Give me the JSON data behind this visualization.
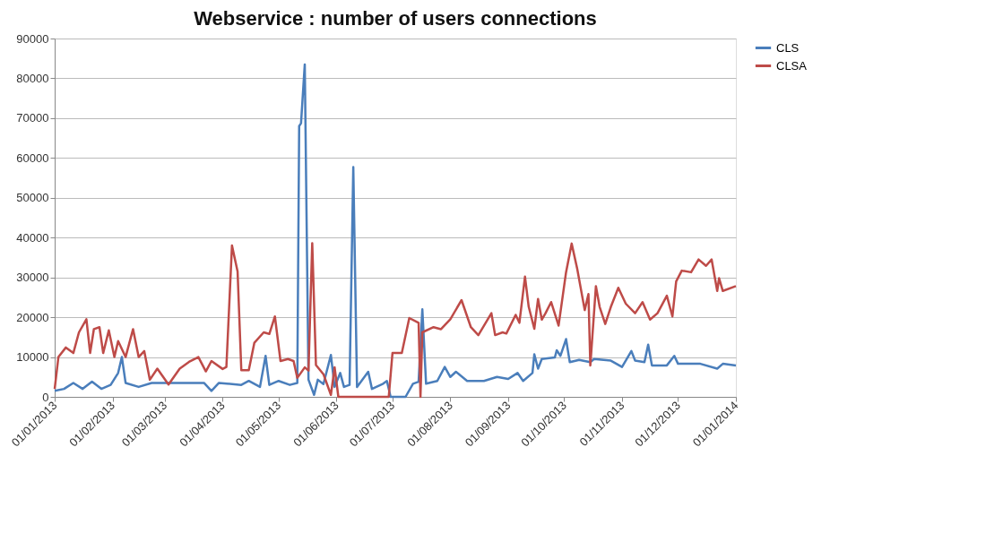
{
  "chart_data": {
    "type": "line",
    "title": "Webservice : number of users connections",
    "xlim": [
      "2013-01-01",
      "2014-01-01"
    ],
    "xticks": [
      {
        "value": "2013-01-01",
        "label": "01/01/2013"
      },
      {
        "value": "2013-02-01",
        "label": "01/02/2013"
      },
      {
        "value": "2013-03-01",
        "label": "01/03/2013"
      },
      {
        "value": "2013-04-01",
        "label": "01/04/2013"
      },
      {
        "value": "2013-05-01",
        "label": "01/05/2013"
      },
      {
        "value": "2013-06-01",
        "label": "01/06/2013"
      },
      {
        "value": "2013-07-01",
        "label": "01/07/2013"
      },
      {
        "value": "2013-08-01",
        "label": "01/08/2013"
      },
      {
        "value": "2013-09-01",
        "label": "01/09/2013"
      },
      {
        "value": "2013-10-01",
        "label": "01/10/2013"
      },
      {
        "value": "2013-11-01",
        "label": "01/11/2013"
      },
      {
        "value": "2013-12-01",
        "label": "01/12/2013"
      },
      {
        "value": "2014-01-01",
        "label": "01/01/2014"
      }
    ],
    "ylim": [
      0,
      90000
    ],
    "yticks": [
      0,
      10000,
      20000,
      30000,
      40000,
      50000,
      60000,
      70000,
      80000,
      90000
    ],
    "grid": "y",
    "legend": "right",
    "marker": "none",
    "line_style": "solid",
    "series": [
      {
        "name": "CLS",
        "color": "#4a7ebb",
        "x": [
          "2013-01-01",
          "2013-01-06",
          "2013-01-11",
          "2013-01-16",
          "2013-01-21",
          "2013-01-26",
          "2013-01-31",
          "2013-02-04",
          "2013-02-06",
          "2013-02-08",
          "2013-02-15",
          "2013-02-22",
          "2013-03-02",
          "2013-03-22",
          "2013-03-26",
          "2013-03-30",
          "2013-04-11",
          "2013-04-15",
          "2013-04-21",
          "2013-04-24",
          "2013-04-26",
          "2013-05-01",
          "2013-05-07",
          "2013-05-11",
          "2013-05-12",
          "2013-05-13",
          "2013-05-15",
          "2013-05-17",
          "2013-05-20",
          "2013-05-22",
          "2013-05-25",
          "2013-05-29",
          "2013-05-31",
          "2013-06-03",
          "2013-06-05",
          "2013-06-08",
          "2013-06-10",
          "2013-06-12",
          "2013-06-18",
          "2013-06-20",
          "2013-06-26",
          "2013-06-28",
          "2013-06-30",
          "2013-07-08",
          "2013-07-12",
          "2013-07-15",
          "2013-07-17",
          "2013-07-19",
          "2013-07-25",
          "2013-07-29",
          "2013-08-01",
          "2013-08-04",
          "2013-08-10",
          "2013-08-19",
          "2013-08-26",
          "2013-09-01",
          "2013-09-06",
          "2013-09-09",
          "2013-09-14",
          "2013-09-15",
          "2013-09-17",
          "2013-09-19",
          "2013-09-26",
          "2013-09-27",
          "2013-09-29",
          "2013-10-02",
          "2013-10-04",
          "2013-10-09",
          "2013-10-15",
          "2013-10-17",
          "2013-10-26",
          "2013-11-01",
          "2013-11-06",
          "2013-11-08",
          "2013-11-13",
          "2013-11-15",
          "2013-11-17",
          "2013-11-25",
          "2013-11-29",
          "2013-12-01",
          "2013-12-13",
          "2013-12-22",
          "2013-12-25",
          "2014-01-01"
        ],
        "values": [
          1500,
          2000,
          3500,
          2000,
          3800,
          2000,
          3000,
          6000,
          10000,
          3500,
          2500,
          3500,
          3500,
          3500,
          1500,
          3500,
          3000,
          4000,
          2500,
          10300,
          3000,
          4000,
          3000,
          3500,
          68000,
          68700,
          83500,
          4300,
          500,
          4300,
          3200,
          10500,
          2500,
          6000,
          2500,
          3000,
          57700,
          2500,
          6300,
          2000,
          3300,
          4000,
          0,
          0,
          3300,
          3800,
          22000,
          3300,
          4000,
          7500,
          5000,
          6300,
          4000,
          4000,
          5000,
          4500,
          6000,
          4000,
          6000,
          10700,
          7100,
          9500,
          9900,
          11700,
          10300,
          14500,
          8700,
          9300,
          8700,
          9500,
          9100,
          7500,
          11500,
          9100,
          8700,
          13100,
          7900,
          7900,
          10300,
          8300,
          8300,
          7100,
          8300,
          7900
        ]
      },
      {
        "name": "CLSA",
        "color": "#be4b48",
        "x": [
          "2013-01-01",
          "2013-01-03",
          "2013-01-07",
          "2013-01-11",
          "2013-01-14",
          "2013-01-18",
          "2013-01-20",
          "2013-01-22",
          "2013-01-25",
          "2013-01-27",
          "2013-01-30",
          "2013-02-02",
          "2013-02-04",
          "2013-02-08",
          "2013-02-12",
          "2013-02-15",
          "2013-02-18",
          "2013-02-21",
          "2013-02-25",
          "2013-03-03",
          "2013-03-09",
          "2013-03-14",
          "2013-03-19",
          "2013-03-23",
          "2013-03-26",
          "2013-04-01",
          "2013-04-03",
          "2013-04-06",
          "2013-04-09",
          "2013-04-11",
          "2013-04-15",
          "2013-04-18",
          "2013-04-23",
          "2013-04-26",
          "2013-04-29",
          "2013-05-02",
          "2013-05-06",
          "2013-05-09",
          "2013-05-11",
          "2013-05-15",
          "2013-05-17",
          "2013-05-19",
          "2013-05-21",
          "2013-05-25",
          "2013-05-29",
          "2013-05-31",
          "2013-06-02",
          "2013-06-29",
          "2013-07-01",
          "2013-07-06",
          "2013-07-10",
          "2013-07-15",
          "2013-07-16",
          "2013-07-17",
          "2013-07-23",
          "2013-07-27",
          "2013-08-01",
          "2013-08-07",
          "2013-08-12",
          "2013-08-16",
          "2013-08-23",
          "2013-08-25",
          "2013-08-29",
          "2013-08-31",
          "2013-09-05",
          "2013-09-07",
          "2013-09-10",
          "2013-09-12",
          "2013-09-15",
          "2013-09-17",
          "2013-09-19",
          "2013-09-21",
          "2013-09-24",
          "2013-09-28",
          "2013-10-02",
          "2013-10-05",
          "2013-10-08",
          "2013-10-12",
          "2013-10-14",
          "2013-10-15",
          "2013-10-18",
          "2013-10-20",
          "2013-10-23",
          "2013-10-26",
          "2013-10-30",
          "2013-11-03",
          "2013-11-08",
          "2013-11-12",
          "2013-11-16",
          "2013-11-20",
          "2013-11-25",
          "2013-11-28",
          "2013-11-30",
          "2013-12-03",
          "2013-12-08",
          "2013-12-12",
          "2013-12-16",
          "2013-12-19",
          "2013-12-22",
          "2013-12-23",
          "2013-12-25",
          "2014-01-01"
        ],
        "values": [
          2000,
          10000,
          12400,
          11000,
          16200,
          19500,
          11000,
          17000,
          17500,
          11000,
          16700,
          10000,
          14000,
          10000,
          17000,
          10000,
          11500,
          4300,
          7100,
          3100,
          7100,
          8800,
          10000,
          6400,
          9000,
          7000,
          7500,
          38000,
          31500,
          6700,
          6700,
          13600,
          16200,
          15800,
          20200,
          9000,
          9500,
          9000,
          4800,
          7400,
          6600,
          38600,
          8000,
          5700,
          500,
          7400,
          0,
          0,
          11000,
          11000,
          19800,
          18600,
          0,
          16200,
          17500,
          17000,
          19500,
          24300,
          17500,
          15500,
          21000,
          15500,
          16200,
          15900,
          20600,
          18600,
          30200,
          22600,
          17100,
          24600,
          19400,
          21000,
          23800,
          17900,
          31300,
          38500,
          32100,
          21800,
          25800,
          7900,
          27800,
          22600,
          18300,
          22600,
          27400,
          23400,
          21000,
          23800,
          19400,
          21000,
          25400,
          20200,
          29000,
          31700,
          31300,
          34500,
          32900,
          34500,
          26600,
          29800,
          26600,
          27800
        ]
      }
    ]
  }
}
